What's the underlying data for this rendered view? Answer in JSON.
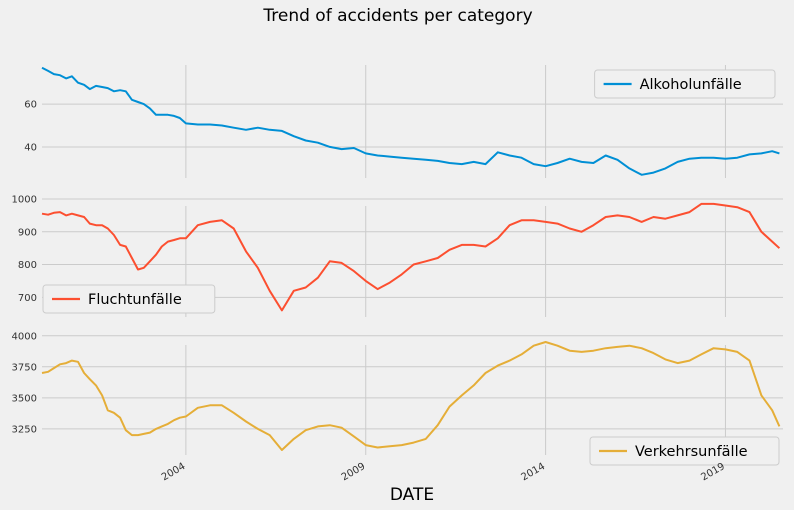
{
  "chart_data": {
    "type": "line",
    "title": "Trend of accidents per category",
    "xlabel": "DATE",
    "x_tick_labels": [
      "2004",
      "2009",
      "2014",
      "2019"
    ],
    "x_range": [
      2000.0,
      2020.6
    ],
    "grid": true,
    "panels": [
      {
        "series": {
          "name": "Alkoholunfälle",
          "color": "#008fd5"
        },
        "legend_position": "top-right",
        "ylim": [
          25.5,
          82
        ],
        "yticks": [
          40,
          60
        ],
        "x": [
          2000.0,
          2000.17,
          2000.33,
          2000.5,
          2000.67,
          2000.83,
          2001.0,
          2001.17,
          2001.33,
          2001.5,
          2001.67,
          2001.83,
          2002.0,
          2002.17,
          2002.33,
          2002.5,
          2002.67,
          2002.83,
          2003.0,
          2003.17,
          2003.33,
          2003.5,
          2003.67,
          2003.83,
          2004.0,
          2004.33,
          2004.67,
          2005.0,
          2005.33,
          2005.67,
          2006.0,
          2006.33,
          2006.67,
          2007.0,
          2007.33,
          2007.67,
          2008.0,
          2008.33,
          2008.67,
          2009.0,
          2009.33,
          2009.67,
          2010.0,
          2010.33,
          2010.67,
          2011.0,
          2011.33,
          2011.67,
          2012.0,
          2012.33,
          2012.67,
          2013.0,
          2013.33,
          2013.67,
          2014.0,
          2014.33,
          2014.67,
          2015.0,
          2015.33,
          2015.67,
          2016.0,
          2016.33,
          2016.67,
          2017.0,
          2017.33,
          2017.67,
          2018.0,
          2018.33,
          2018.67,
          2019.0,
          2019.33,
          2019.67,
          2020.0,
          2020.3,
          2020.5
        ],
        "values": [
          77,
          75.5,
          74,
          73.5,
          72,
          73,
          70,
          69,
          67,
          68.5,
          68,
          67.5,
          66,
          66.5,
          66,
          62,
          61,
          60,
          58,
          55,
          55,
          55,
          54.5,
          53.5,
          51,
          50.5,
          50.5,
          50,
          49,
          48,
          49,
          48,
          47.5,
          45,
          43,
          42,
          40,
          39,
          39.5,
          37,
          36,
          35.5,
          35,
          34.5,
          34,
          33.5,
          32.5,
          32,
          33,
          32,
          37.5,
          36,
          35,
          32,
          31,
          32.5,
          34.5,
          33,
          32.5,
          36,
          34,
          30,
          27,
          28,
          30,
          33,
          34.5,
          35,
          35,
          34.5,
          35,
          36.5,
          37,
          38,
          37
        ]
      },
      {
        "series": {
          "name": "Fluchtunfälle",
          "color": "#fc4f30"
        },
        "legend_position": "bottom-left",
        "ylim": [
          640,
          1003
        ],
        "yticks": [
          700,
          800,
          900,
          1000
        ],
        "x": [
          2000.0,
          2000.17,
          2000.33,
          2000.5,
          2000.67,
          2000.83,
          2001.0,
          2001.17,
          2001.33,
          2001.5,
          2001.67,
          2001.83,
          2002.0,
          2002.17,
          2002.33,
          2002.5,
          2002.67,
          2002.83,
          2003.0,
          2003.17,
          2003.33,
          2003.5,
          2003.67,
          2003.83,
          2004.0,
          2004.33,
          2004.67,
          2005.0,
          2005.33,
          2005.67,
          2006.0,
          2006.33,
          2006.67,
          2007.0,
          2007.33,
          2007.67,
          2008.0,
          2008.33,
          2008.67,
          2009.0,
          2009.33,
          2009.67,
          2010.0,
          2010.33,
          2010.67,
          2011.0,
          2011.33,
          2011.67,
          2012.0,
          2012.33,
          2012.67,
          2013.0,
          2013.33,
          2013.67,
          2014.0,
          2014.33,
          2014.67,
          2015.0,
          2015.33,
          2015.67,
          2016.0,
          2016.33,
          2016.67,
          2017.0,
          2017.33,
          2017.67,
          2018.0,
          2018.33,
          2018.67,
          2019.0,
          2019.33,
          2019.67,
          2020.0,
          2020.3,
          2020.5
        ],
        "values": [
          955,
          952,
          958,
          960,
          950,
          955,
          950,
          945,
          925,
          920,
          920,
          910,
          890,
          860,
          855,
          820,
          785,
          790,
          810,
          830,
          855,
          870,
          875,
          880,
          880,
          920,
          930,
          935,
          910,
          840,
          790,
          720,
          660,
          720,
          730,
          760,
          810,
          805,
          780,
          750,
          725,
          745,
          770,
          800,
          810,
          820,
          845,
          860,
          860,
          855,
          880,
          920,
          935,
          935,
          930,
          925,
          910,
          900,
          920,
          945,
          950,
          945,
          930,
          945,
          940,
          950,
          960,
          985,
          985,
          980,
          975,
          960,
          900,
          870,
          850
        ]
      },
      {
        "series": {
          "name": "Verkehrsunfälle",
          "color": "#e5ae38"
        },
        "legend_position": "bottom-right",
        "ylim": [
          3040,
          3990
        ],
        "yticks": [
          3250,
          3500,
          3750,
          4000
        ],
        "x": [
          2000.0,
          2000.17,
          2000.33,
          2000.5,
          2000.67,
          2000.83,
          2001.0,
          2001.17,
          2001.33,
          2001.5,
          2001.67,
          2001.83,
          2002.0,
          2002.17,
          2002.33,
          2002.5,
          2002.67,
          2002.83,
          2003.0,
          2003.17,
          2003.33,
          2003.5,
          2003.67,
          2003.83,
          2004.0,
          2004.33,
          2004.67,
          2005.0,
          2005.33,
          2005.67,
          2006.0,
          2006.33,
          2006.67,
          2007.0,
          2007.33,
          2007.67,
          2008.0,
          2008.33,
          2008.67,
          2009.0,
          2009.33,
          2009.67,
          2010.0,
          2010.33,
          2010.67,
          2011.0,
          2011.33,
          2011.67,
          2012.0,
          2012.33,
          2012.67,
          2013.0,
          2013.33,
          2013.67,
          2014.0,
          2014.33,
          2014.67,
          2015.0,
          2015.33,
          2015.67,
          2016.0,
          2016.33,
          2016.67,
          2017.0,
          2017.33,
          2017.67,
          2018.0,
          2018.33,
          2018.67,
          2019.0,
          2019.33,
          2019.67,
          2020.0,
          2020.3,
          2020.5
        ],
        "values": [
          3700,
          3710,
          3740,
          3770,
          3780,
          3800,
          3790,
          3700,
          3650,
          3600,
          3520,
          3400,
          3380,
          3340,
          3240,
          3200,
          3200,
          3210,
          3220,
          3250,
          3270,
          3290,
          3320,
          3340,
          3350,
          3420,
          3440,
          3440,
          3380,
          3310,
          3250,
          3200,
          3080,
          3170,
          3240,
          3270,
          3280,
          3260,
          3190,
          3120,
          3100,
          3110,
          3120,
          3140,
          3170,
          3280,
          3430,
          3520,
          3600,
          3700,
          3760,
          3800,
          3850,
          3920,
          3950,
          3920,
          3880,
          3870,
          3880,
          3900,
          3910,
          3920,
          3900,
          3860,
          3810,
          3780,
          3800,
          3850,
          3900,
          3890,
          3870,
          3800,
          3520,
          3400,
          3270
        ]
      }
    ]
  }
}
